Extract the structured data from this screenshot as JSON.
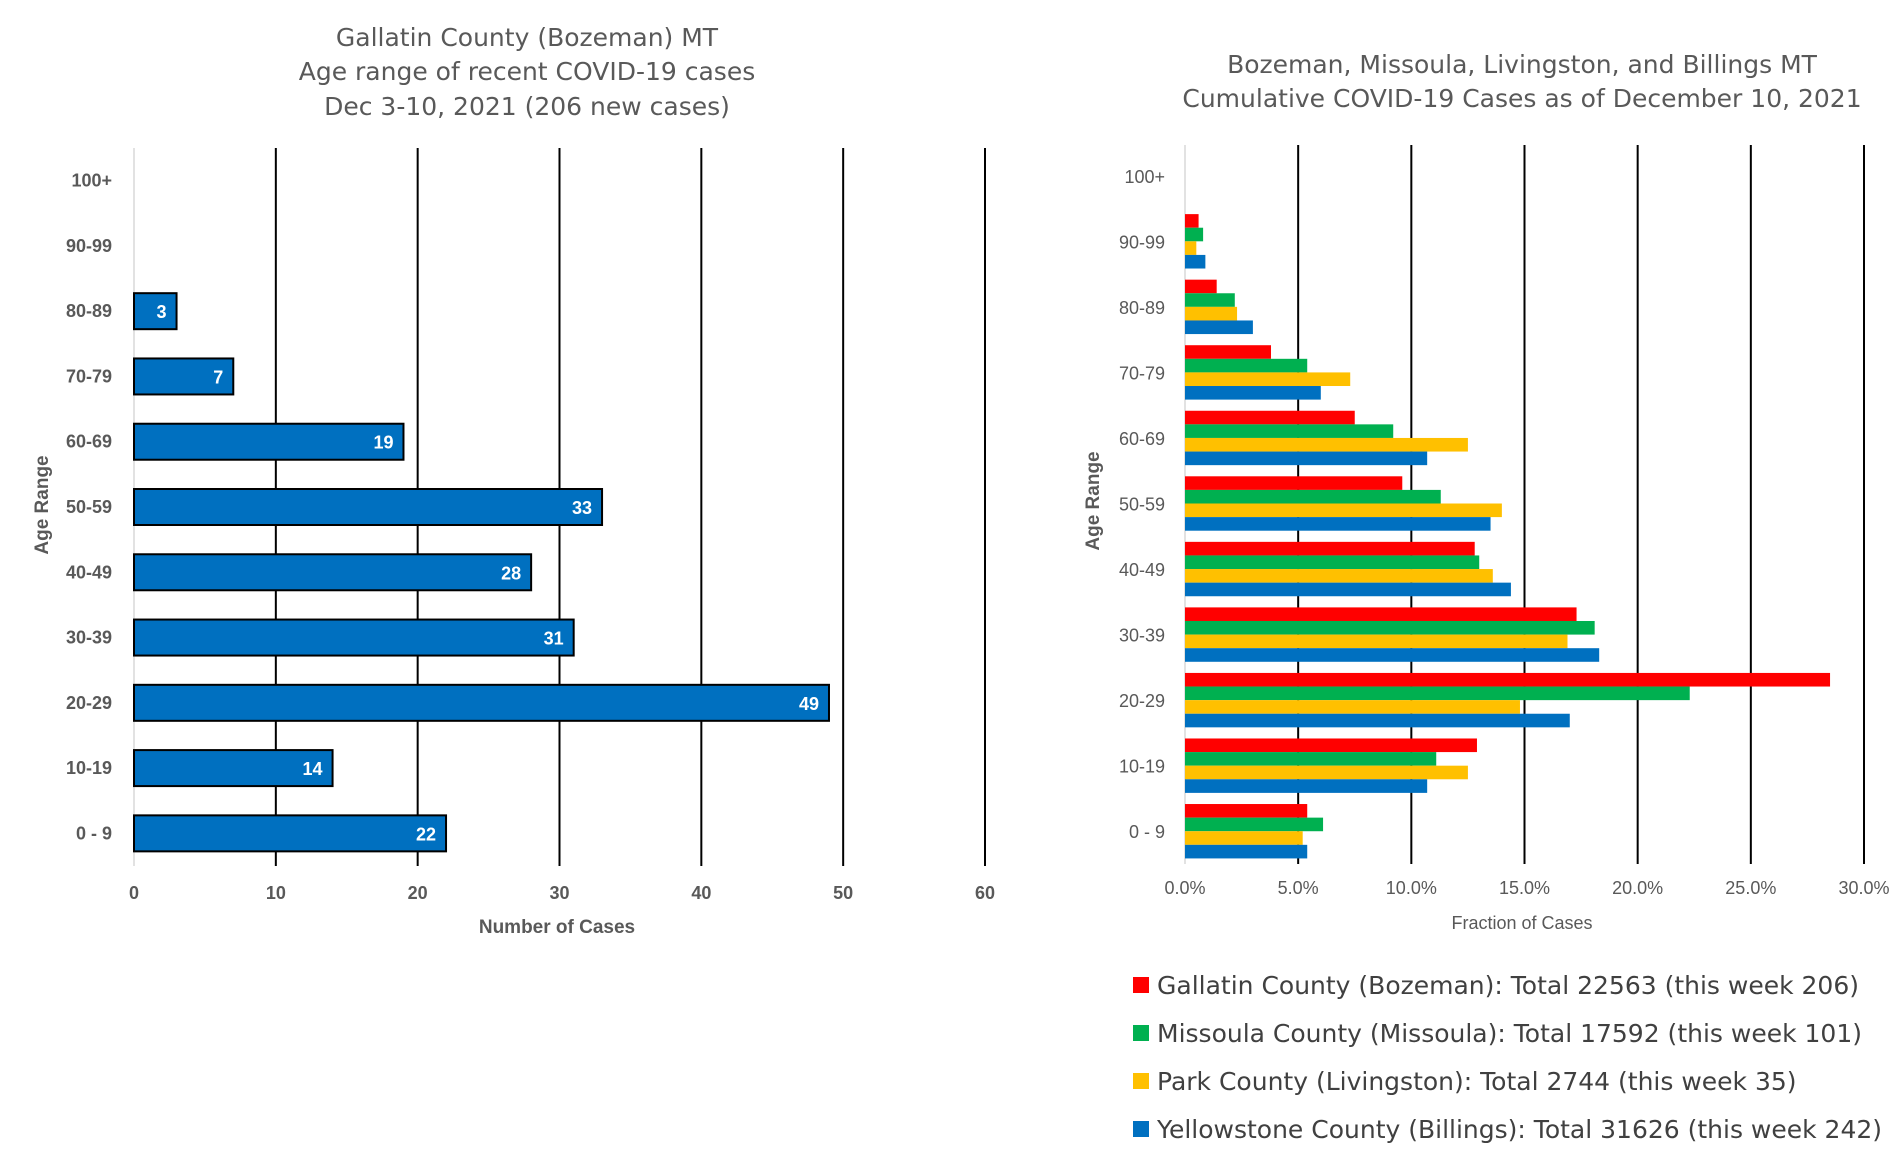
{
  "chart_data": [
    {
      "type": "bar",
      "orientation": "horizontal",
      "title": [
        "Gallatin County (Bozeman) MT",
        "Age range of recent COVID-19 cases",
        "Dec 3-10, 2021 (206 new cases)"
      ],
      "xlabel": "Number of Cases",
      "ylabel": "Age Range",
      "categories": [
        "100+",
        "90-99",
        "80-89",
        "70-79",
        "60-69",
        "50-59",
        "40-49",
        "30-39",
        "20-29",
        "10-19",
        "0 - 9"
      ],
      "values": [
        0,
        0,
        3,
        7,
        19,
        33,
        28,
        31,
        49,
        14,
        22
      ],
      "data_labels": [
        "",
        "",
        "3",
        "7",
        "19",
        "33",
        "28",
        "31",
        "49",
        "14",
        "22"
      ],
      "xlim": [
        0,
        60
      ],
      "xticks": [
        "0",
        "10",
        "20",
        "30",
        "40",
        "50",
        "60"
      ],
      "grid": "vertical",
      "color": "#0070C0",
      "legend": "none"
    },
    {
      "type": "bar",
      "orientation": "horizontal",
      "title": [
        "Bozeman, Missoula, Livingston, and Billings MT",
        "Cumulative COVID-19 Cases as of December 10, 2021"
      ],
      "xlabel": "Fraction of Cases",
      "ylabel": "Age Range",
      "categories": [
        "100+",
        "90-99",
        "80-89",
        "70-79",
        "60-69",
        "50-59",
        "40-49",
        "30-39",
        "20-29",
        "10-19",
        "0 - 9"
      ],
      "xlim": [
        0,
        0.3
      ],
      "xticks": [
        "0.0%",
        "5.0%",
        "10.0%",
        "15.0%",
        "20.0%",
        "25.0%",
        "30.0%"
      ],
      "grid": "vertical",
      "legend": "bottom",
      "series": [
        {
          "name": "Gallatin County (Bozeman): Total 22563 (this week 206)",
          "color": "#FF0000",
          "values": [
            0,
            0.006,
            0.014,
            0.038,
            0.075,
            0.096,
            0.128,
            0.173,
            0.285,
            0.129,
            0.054
          ]
        },
        {
          "name": "Missoula County (Missoula): Total 17592 (this week 101)",
          "color": "#00B050",
          "values": [
            0,
            0.008,
            0.022,
            0.054,
            0.092,
            0.113,
            0.13,
            0.181,
            0.223,
            0.111,
            0.061
          ]
        },
        {
          "name": "Park County (Livingston): Total 2744 (this week 35)",
          "color": "#FFC000",
          "values": [
            0,
            0.005,
            0.023,
            0.073,
            0.125,
            0.14,
            0.136,
            0.169,
            0.148,
            0.125,
            0.052
          ]
        },
        {
          "name": "Yellowstone County (Billings): Total 31626 (this week 242)",
          "color": "#0070C0",
          "values": [
            0,
            0.009,
            0.03,
            0.06,
            0.107,
            0.135,
            0.144,
            0.183,
            0.17,
            0.107,
            0.054
          ]
        }
      ]
    }
  ]
}
